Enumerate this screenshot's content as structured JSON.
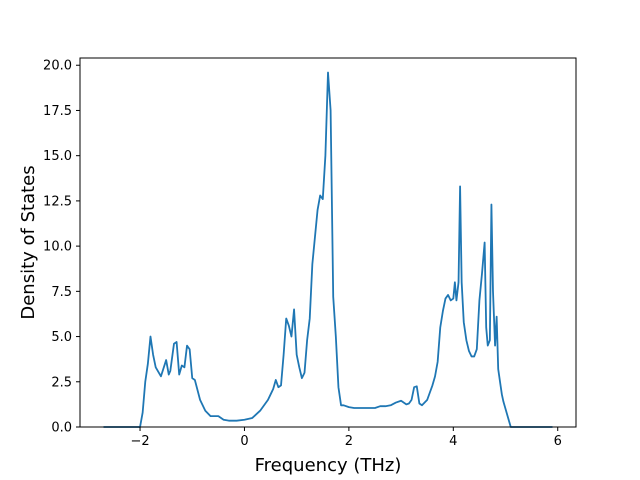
{
  "chart_data": {
    "type": "line",
    "title": "",
    "xlabel": "Frequency (THz)",
    "ylabel": "Density of States",
    "xlim": [
      -3.15,
      6.35
    ],
    "ylim": [
      0,
      20.4
    ],
    "xticks": [
      -2,
      0,
      2,
      4,
      6
    ],
    "xtick_labels": [
      "−2",
      "0",
      "2",
      "4",
      "6"
    ],
    "yticks": [
      0,
      2.5,
      5,
      7.5,
      10,
      12.5,
      15,
      17.5,
      20
    ],
    "ytick_labels": [
      "0.0",
      "2.5",
      "5.0",
      "7.5",
      "10.0",
      "12.5",
      "15.0",
      "17.5",
      "20.0"
    ],
    "grid": false,
    "color": "#1f77b4",
    "series": [
      {
        "x": [
          -2.7,
          -2.0,
          -1.95,
          -1.9,
          -1.85,
          -1.8,
          -1.75,
          -1.7,
          -1.6,
          -1.5,
          -1.45,
          -1.42,
          -1.35,
          -1.3,
          -1.25,
          -1.2,
          -1.15,
          -1.1,
          -1.05,
          -1.0,
          -0.95,
          -0.85,
          -0.75,
          -0.65,
          -0.5,
          -0.4,
          -0.3,
          -0.15,
          0.0,
          0.15,
          0.3,
          0.4,
          0.45,
          0.5,
          0.55,
          0.6,
          0.65,
          0.7,
          0.75,
          0.8,
          0.85,
          0.9,
          0.95,
          1.0,
          1.05,
          1.1,
          1.15,
          1.2,
          1.25,
          1.3,
          1.35,
          1.4,
          1.45,
          1.5,
          1.55,
          1.6,
          1.65,
          1.7,
          1.75,
          1.8,
          1.85,
          1.9,
          2.0,
          2.1,
          2.2,
          2.3,
          2.4,
          2.5,
          2.6,
          2.7,
          2.8,
          2.9,
          3.0,
          3.1,
          3.15,
          3.2,
          3.25,
          3.3,
          3.35,
          3.4,
          3.5,
          3.55,
          3.6,
          3.65,
          3.7,
          3.75,
          3.8,
          3.85,
          3.9,
          3.95,
          4.0,
          4.03,
          4.06,
          4.1,
          4.13,
          4.16,
          4.2,
          4.25,
          4.3,
          4.35,
          4.4,
          4.45,
          4.5,
          4.55,
          4.6,
          4.63,
          4.66,
          4.7,
          4.73,
          4.76,
          4.8,
          4.83,
          4.86,
          4.9,
          4.93,
          4.96,
          5.0,
          5.1,
          5.2,
          5.3,
          5.5,
          5.9
        ],
        "y": [
          0.0,
          0.0,
          0.8,
          2.5,
          3.5,
          5.0,
          4.0,
          3.3,
          2.8,
          3.7,
          2.9,
          3.1,
          4.6,
          4.7,
          2.9,
          3.4,
          3.3,
          4.5,
          4.3,
          2.7,
          2.6,
          1.5,
          0.9,
          0.6,
          0.6,
          0.4,
          0.35,
          0.35,
          0.4,
          0.5,
          0.9,
          1.3,
          1.5,
          1.8,
          2.1,
          2.6,
          2.2,
          2.3,
          4.0,
          6.0,
          5.6,
          5.0,
          6.5,
          4.0,
          3.3,
          2.7,
          3.0,
          4.8,
          6.0,
          9.0,
          10.5,
          12.0,
          12.8,
          12.6,
          15.0,
          19.6,
          17.5,
          7.2,
          5.0,
          2.2,
          1.2,
          1.2,
          1.1,
          1.05,
          1.05,
          1.05,
          1.05,
          1.05,
          1.15,
          1.15,
          1.2,
          1.35,
          1.45,
          1.25,
          1.3,
          1.5,
          2.2,
          2.25,
          1.3,
          1.2,
          1.5,
          1.9,
          2.3,
          2.8,
          3.6,
          5.5,
          6.4,
          7.1,
          7.3,
          7.0,
          7.1,
          8.0,
          7.0,
          8.0,
          13.3,
          8.0,
          5.8,
          4.8,
          4.2,
          3.9,
          3.9,
          4.3,
          7.0,
          8.5,
          10.2,
          5.5,
          4.5,
          4.8,
          12.3,
          7.5,
          4.5,
          6.1,
          3.2,
          2.4,
          1.8,
          1.4,
          1.0,
          0.0,
          0.0,
          0.0,
          0.0,
          0.0
        ]
      }
    ]
  }
}
